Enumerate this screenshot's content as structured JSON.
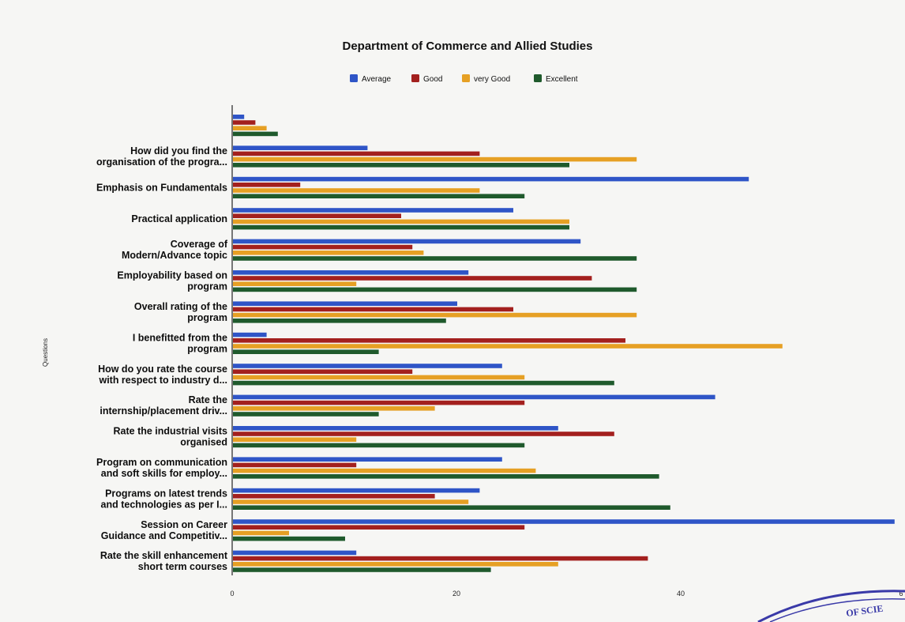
{
  "chart_data": {
    "type": "bar",
    "orientation": "horizontal",
    "title": "Department of Commerce and Allied Studies",
    "ylabel": "Questions",
    "xlim": [
      0,
      60
    ],
    "x_ticks": [
      "0",
      "20",
      "40",
      "6"
    ],
    "grid": false,
    "legend_position": "top",
    "categories": [
      [
        ""
      ],
      [
        "How did you find the",
        "organisation of the progra..."
      ],
      [
        "Emphasis on Fundamentals"
      ],
      [
        "Practical application"
      ],
      [
        "Coverage of",
        "Modern/Advance topic"
      ],
      [
        "Employability based on",
        "program"
      ],
      [
        "Overall rating of the",
        "program"
      ],
      [
        "I benefitted from the",
        "program"
      ],
      [
        "How do you rate the course",
        "with respect to industry d..."
      ],
      [
        "Rate the",
        "internship/placement driv..."
      ],
      [
        "Rate the industrial visits",
        "organised"
      ],
      [
        "Program on communication",
        "and soft skills for employ..."
      ],
      [
        "Programs on latest trends",
        "and technologies as per I..."
      ],
      [
        "Session on Career",
        "Guidance and Competitiv..."
      ],
      [
        "Rate the skill enhancement",
        "short term courses"
      ]
    ],
    "series": [
      {
        "name": "Average",
        "color": "#2f55c7",
        "values": [
          1,
          12,
          46,
          25,
          31,
          21,
          20,
          3,
          24,
          43,
          29,
          24,
          22,
          59,
          11
        ]
      },
      {
        "name": "Good",
        "color": "#a3201e",
        "values": [
          2,
          22,
          6,
          15,
          16,
          32,
          25,
          35,
          16,
          26,
          34,
          11,
          18,
          26,
          37
        ]
      },
      {
        "name": "very Good",
        "color": "#e6a024",
        "values": [
          3,
          36,
          22,
          30,
          17,
          11,
          36,
          49,
          26,
          18,
          11,
          27,
          21,
          5,
          29
        ]
      },
      {
        "name": "Excellent",
        "color": "#1f5a2c",
        "values": [
          4,
          30,
          26,
          30,
          36,
          36,
          19,
          13,
          34,
          13,
          26,
          38,
          39,
          10,
          23
        ]
      }
    ]
  },
  "stamp": {
    "text": "OF SCIE"
  }
}
